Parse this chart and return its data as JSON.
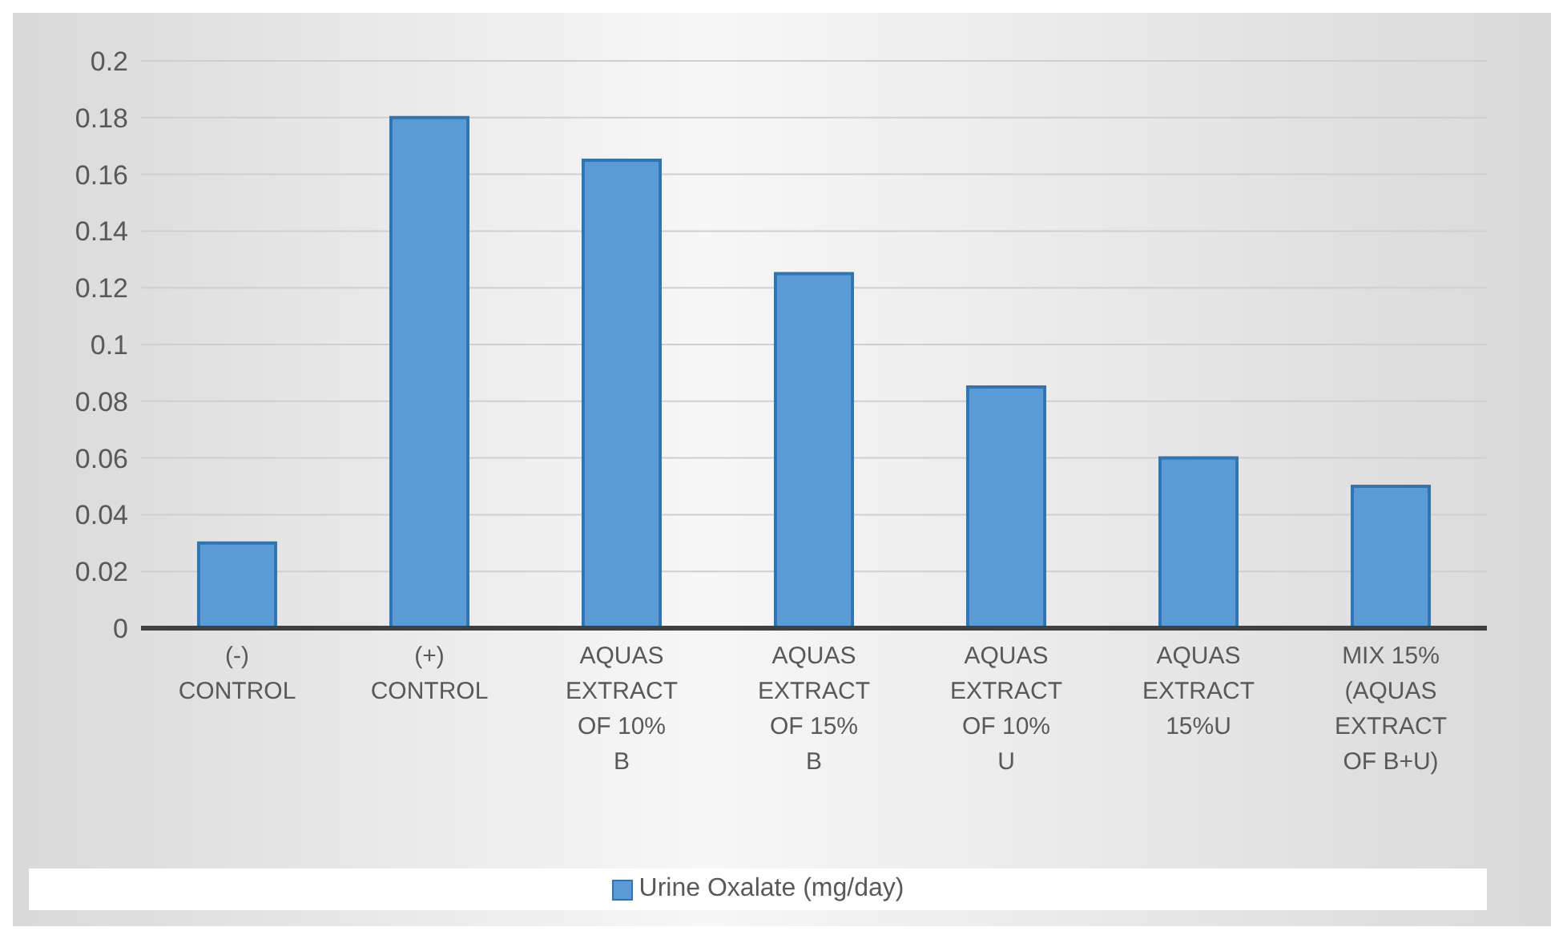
{
  "chart_data": {
    "type": "bar",
    "categories": [
      "(-) CONTROL",
      "(+) CONTROL",
      "AQUAS EXTRACT OF 10% B",
      "AQUAS EXTRACT OF 15% B",
      "AQUAS EXTRACT OF 10% U",
      "AQUAS EXTRACT 15%U",
      "MIX 15% (AQUAS EXTRACT OF B+U)"
    ],
    "series": [
      {
        "name": "Urine Oxalate (mg/day)",
        "color": "#5b9bd5",
        "values": [
          0.03,
          0.18,
          0.165,
          0.125,
          0.085,
          0.06,
          0.05
        ]
      }
    ],
    "ylim": [
      0,
      0.2
    ],
    "yticks": [
      0,
      0.02,
      0.04,
      0.06,
      0.08,
      0.1,
      0.12,
      0.14,
      0.16,
      0.18,
      0.2
    ],
    "grid": "y",
    "legend": "bottom"
  }
}
